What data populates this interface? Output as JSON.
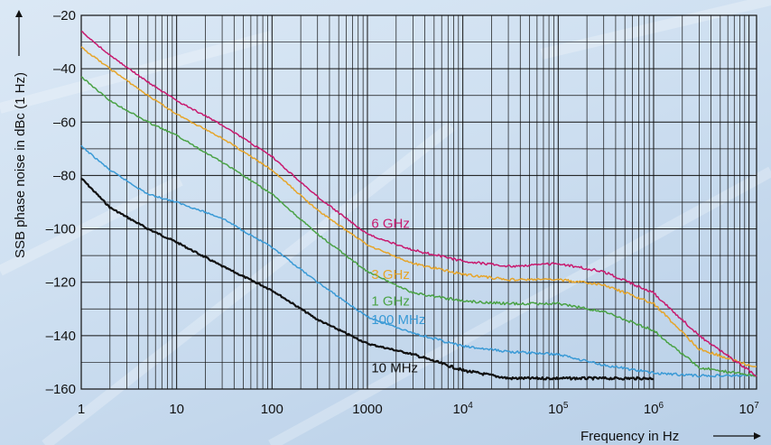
{
  "chart_data": {
    "type": "line",
    "xlabel": "Frequency in Hz",
    "ylabel": "SSB phase noise in dBc (1 Hz)",
    "x_scale": "log",
    "xlim": [
      1,
      12000000
    ],
    "ylim": [
      -160,
      -20
    ],
    "grid": true,
    "x_ticks": [
      {
        "value": 1,
        "label": "1"
      },
      {
        "value": 10,
        "label": "10"
      },
      {
        "value": 100,
        "label": "100"
      },
      {
        "value": 1000,
        "label": "1000"
      },
      {
        "value": 10000,
        "base": "10",
        "exp": "4"
      },
      {
        "value": 100000,
        "base": "10",
        "exp": "5"
      },
      {
        "value": 1000000,
        "base": "10",
        "exp": "6"
      },
      {
        "value": 10000000,
        "base": "10",
        "exp": "7"
      }
    ],
    "y_ticks": [
      {
        "value": -20,
        "label": "–20"
      },
      {
        "value": -40,
        "label": "–40"
      },
      {
        "value": -60,
        "label": "–60"
      },
      {
        "value": -80,
        "label": "–80"
      },
      {
        "value": -100,
        "label": "–100"
      },
      {
        "value": -120,
        "label": "–120"
      },
      {
        "value": -140,
        "label": "–140"
      },
      {
        "value": -160,
        "label": "–160"
      }
    ],
    "series": [
      {
        "name": "6 GHz",
        "color": "#c8196e",
        "stroke": 1.5,
        "label_at": [
          1200,
          -98
        ],
        "x": [
          1,
          2,
          5,
          10,
          30,
          100,
          300,
          1000,
          3000,
          10000,
          30000,
          100000,
          300000,
          1000000,
          3000000,
          12000000
        ],
        "y": [
          -26,
          -35,
          -45,
          -52,
          -61,
          -73,
          -88,
          -102,
          -108,
          -112,
          -114,
          -113,
          -116,
          -124,
          -140,
          -155
        ]
      },
      {
        "name": "3 GHz",
        "color": "#e6a52a",
        "stroke": 1.5,
        "label_at": [
          1200,
          -117
        ],
        "x": [
          1,
          2,
          5,
          10,
          30,
          100,
          300,
          1000,
          3000,
          10000,
          30000,
          100000,
          300000,
          1000000,
          3000000,
          12000000
        ],
        "y": [
          -32,
          -40,
          -50,
          -57,
          -66,
          -78,
          -93,
          -106,
          -113,
          -117,
          -119,
          -119,
          -121,
          -128,
          -145,
          -152
        ]
      },
      {
        "name": "1 GHz",
        "color": "#4aa245",
        "stroke": 1.5,
        "label_at": [
          1200,
          -127
        ],
        "x": [
          1,
          2,
          5,
          10,
          30,
          100,
          300,
          1000,
          3000,
          10000,
          30000,
          100000,
          300000,
          1000000,
          3000000,
          12000000
        ],
        "y": [
          -43,
          -52,
          -60,
          -65,
          -75,
          -87,
          -102,
          -116,
          -124,
          -127,
          -128,
          -128,
          -131,
          -138,
          -152,
          -155
        ]
      },
      {
        "name": "100 MHz",
        "color": "#3a9ad6",
        "stroke": 1.5,
        "label_at": [
          1200,
          -134
        ],
        "x": [
          1,
          2,
          5,
          10,
          30,
          100,
          300,
          1000,
          3000,
          10000,
          30000,
          100000,
          300000,
          1000000,
          3000000,
          12000000
        ],
        "y": [
          -69,
          -78,
          -87,
          -90,
          -96,
          -107,
          -120,
          -133,
          -139,
          -144,
          -146,
          -147,
          -151,
          -154,
          -155,
          -155
        ]
      },
      {
        "name": "10 MHz",
        "color": "#111111",
        "stroke": 2.2,
        "label_at": [
          1200,
          -152
        ],
        "x": [
          1,
          2,
          5,
          10,
          30,
          100,
          300,
          1000,
          3000,
          10000,
          30000,
          100000,
          300000,
          1000000
        ],
        "y": [
          -81,
          -92,
          -100,
          -105,
          -114,
          -123,
          -134,
          -143,
          -147,
          -153,
          -156,
          -156,
          -156,
          -156
        ]
      }
    ]
  }
}
